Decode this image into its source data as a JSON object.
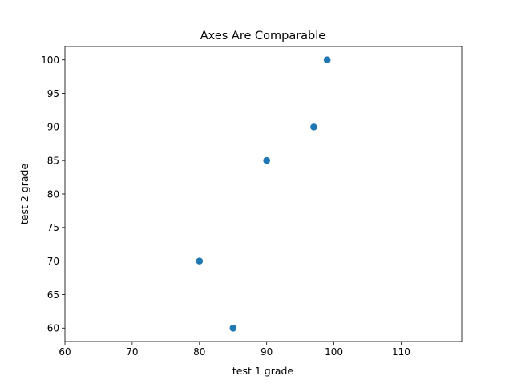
{
  "chart_data": {
    "type": "scatter",
    "title": "Axes Are Comparable",
    "xlabel": "test 1 grade",
    "ylabel": "test 2 grade",
    "xlim": [
      60,
      119
    ],
    "ylim": [
      58,
      102
    ],
    "xticks": [
      60,
      70,
      80,
      90,
      100,
      110
    ],
    "yticks": [
      60,
      65,
      70,
      75,
      80,
      85,
      90,
      95,
      100
    ],
    "x": [
      99,
      90,
      85,
      97,
      80
    ],
    "y": [
      100,
      85,
      60,
      90,
      70
    ],
    "marker_color": "#1f77b4",
    "grid": false
  }
}
